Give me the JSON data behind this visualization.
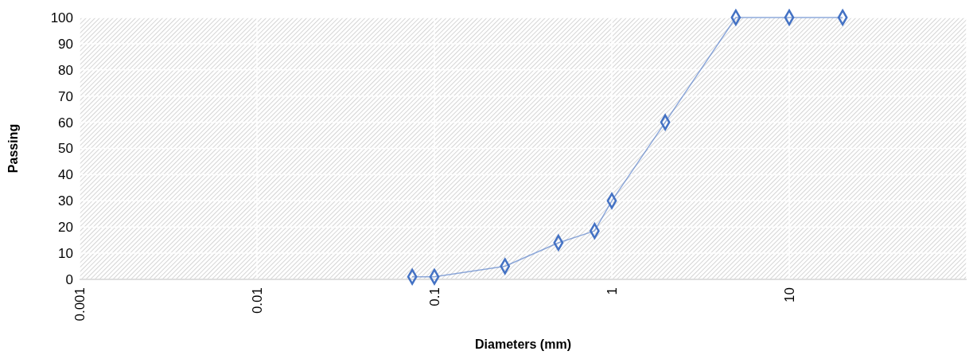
{
  "chart_data": {
    "type": "line",
    "xlabel": "Diameters (mm)",
    "ylabel": "Passing",
    "log": "x",
    "x": [
      0.075,
      0.1,
      0.25,
      0.5,
      0.8,
      1,
      2,
      5,
      10,
      20
    ],
    "series": [
      {
        "color": "#4472c4",
        "values": [
          1,
          1,
          5,
          14,
          18.5,
          30,
          60,
          100,
          100,
          100
        ]
      }
    ],
    "xlim": [
      0.001,
      100
    ],
    "xticks": [
      0.001,
      0.01,
      0.1,
      1,
      10,
      {
        "value": 100,
        "label": null
      }
    ],
    "ylim": [
      0,
      100
    ],
    "yticks": [
      0,
      10,
      20,
      30,
      40,
      50,
      60,
      70,
      80,
      90,
      100
    ],
    "grid": true,
    "marker": "diamond",
    "line_style": "solid"
  }
}
